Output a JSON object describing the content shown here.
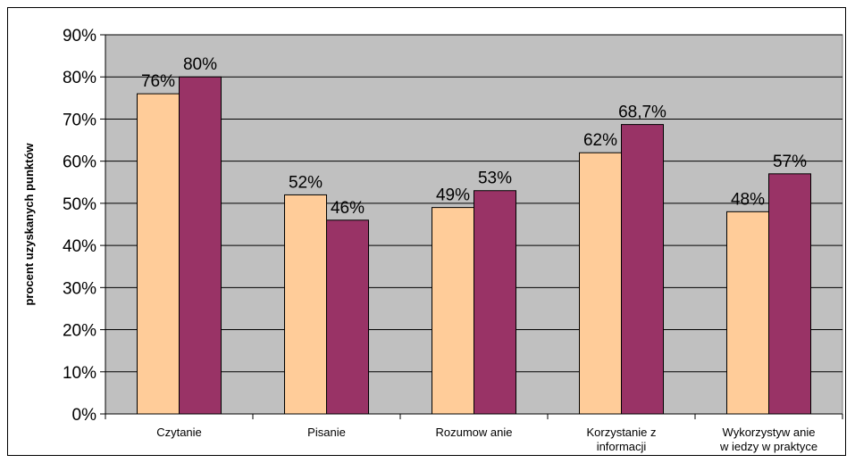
{
  "chart_data": {
    "type": "bar",
    "title": "",
    "xlabel": "",
    "ylabel": "procent uzyskanych punktów",
    "ylim": [
      0,
      90
    ],
    "y_ticks": [
      "0%",
      "10%",
      "20%",
      "30%",
      "40%",
      "50%",
      "60%",
      "70%",
      "80%",
      "90%"
    ],
    "grid": true,
    "legend": "none",
    "categories": [
      [
        "Czytanie"
      ],
      [
        "Pisanie"
      ],
      [
        "Rozumow anie"
      ],
      [
        "Korzystanie z",
        "informacji"
      ],
      [
        "Wykorzystyw anie",
        "w iedzy w praktyce"
      ]
    ],
    "series": [
      {
        "color": "#FFCC99",
        "values": [
          76,
          52,
          49,
          62,
          48
        ],
        "labels": [
          "76%",
          "52%",
          "49%",
          "62%",
          "48%"
        ]
      },
      {
        "color": "#993366",
        "values": [
          80,
          46,
          53,
          68.7,
          57
        ],
        "labels": [
          "80%",
          "46%",
          "53%",
          "68,7%",
          "57%"
        ]
      }
    ],
    "plot_background": "#C0C0C0"
  }
}
